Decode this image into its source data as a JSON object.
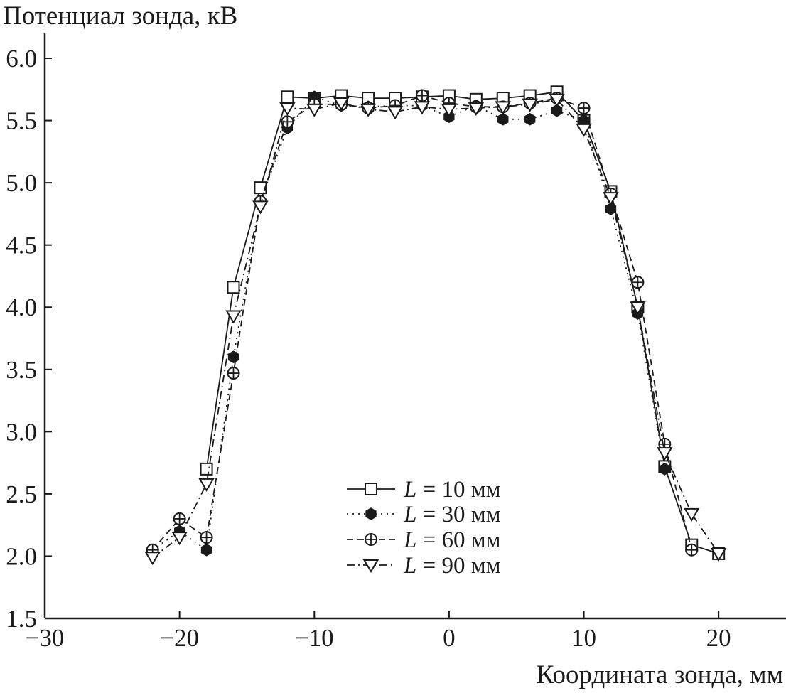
{
  "chart_data": {
    "type": "line",
    "ylabel": "Потенциал зонда, кВ",
    "xlabel": "Координата зонда, мм",
    "xlim": [
      -30,
      25
    ],
    "ylim": [
      1.5,
      6.2
    ],
    "x_ticks": [
      "−30",
      "−20",
      "−10",
      "0",
      "10",
      "20"
    ],
    "x_tick_values": [
      -30,
      -20,
      -10,
      0,
      10,
      20
    ],
    "y_ticks": [
      "1.5",
      "2.0",
      "2.5",
      "3.0",
      "3.5",
      "4.0",
      "4.5",
      "5.0",
      "5.5",
      "6.0"
    ],
    "y_tick_values": [
      1.5,
      2.0,
      2.5,
      3.0,
      3.5,
      4.0,
      4.5,
      5.0,
      5.5,
      6.0
    ],
    "legend_position": "lower-center",
    "series": [
      {
        "name": "L = 10 мм",
        "name_italic": "L",
        "name_rest": " = 10 мм",
        "marker": "square",
        "line": "solid",
        "x": [
          -18,
          -16,
          -14,
          -12,
          -10,
          -8,
          -6,
          -4,
          -2,
          0,
          2,
          4,
          6,
          8,
          10,
          12,
          14,
          16,
          18,
          20
        ],
        "y": [
          2.7,
          4.16,
          4.96,
          5.69,
          5.68,
          5.7,
          5.68,
          5.68,
          5.69,
          5.7,
          5.67,
          5.68,
          5.7,
          5.73,
          5.5,
          4.93,
          4.0,
          2.72,
          2.09,
          2.02
        ]
      },
      {
        "name": "L = 30 мм",
        "name_italic": "L",
        "name_rest": " = 30 мм",
        "marker": "hexagon-filled",
        "line": "dotted",
        "x": [
          -22,
          -20,
          -18,
          -16,
          -14,
          -12,
          -10,
          -8,
          -6,
          -4,
          -2,
          0,
          2,
          4,
          6,
          8,
          10,
          12,
          14,
          16
        ],
        "y": [
          2.05,
          2.2,
          2.05,
          3.6,
          4.85,
          5.44,
          5.69,
          5.62,
          5.61,
          5.62,
          5.62,
          5.53,
          5.62,
          5.51,
          5.51,
          5.58,
          5.5,
          4.79,
          3.95,
          2.7
        ]
      },
      {
        "name": "L = 60 мм",
        "name_italic": "L",
        "name_rest": " = 60 мм",
        "marker": "circle-cross",
        "line": "dashed",
        "x": [
          -22,
          -20,
          -18,
          -16,
          -14,
          -12,
          -10,
          -8,
          -6,
          -4,
          -2,
          0,
          2,
          4,
          6,
          8,
          10,
          12,
          14,
          16,
          18
        ],
        "y": [
          2.05,
          2.3,
          2.15,
          3.47,
          4.85,
          5.49,
          5.63,
          5.63,
          5.6,
          5.62,
          5.7,
          5.64,
          5.61,
          5.61,
          5.64,
          5.68,
          5.6,
          4.91,
          4.2,
          2.9,
          2.05
        ]
      },
      {
        "name": "L = 90 мм",
        "name_italic": "L",
        "name_rest": " = 90 мм",
        "marker": "triangle-down",
        "line": "dashdot",
        "x": [
          -22,
          -20,
          -18,
          -16,
          -14,
          -12,
          -10,
          -8,
          -6,
          -4,
          -2,
          0,
          2,
          4,
          6,
          8,
          10,
          12,
          14,
          16,
          18,
          20
        ],
        "y": [
          1.99,
          2.15,
          2.58,
          3.93,
          4.81,
          5.6,
          5.59,
          5.64,
          5.59,
          5.57,
          5.61,
          5.59,
          5.6,
          5.61,
          5.63,
          5.67,
          5.43,
          4.88,
          4.0,
          2.83,
          2.34,
          2.02
        ]
      }
    ]
  }
}
